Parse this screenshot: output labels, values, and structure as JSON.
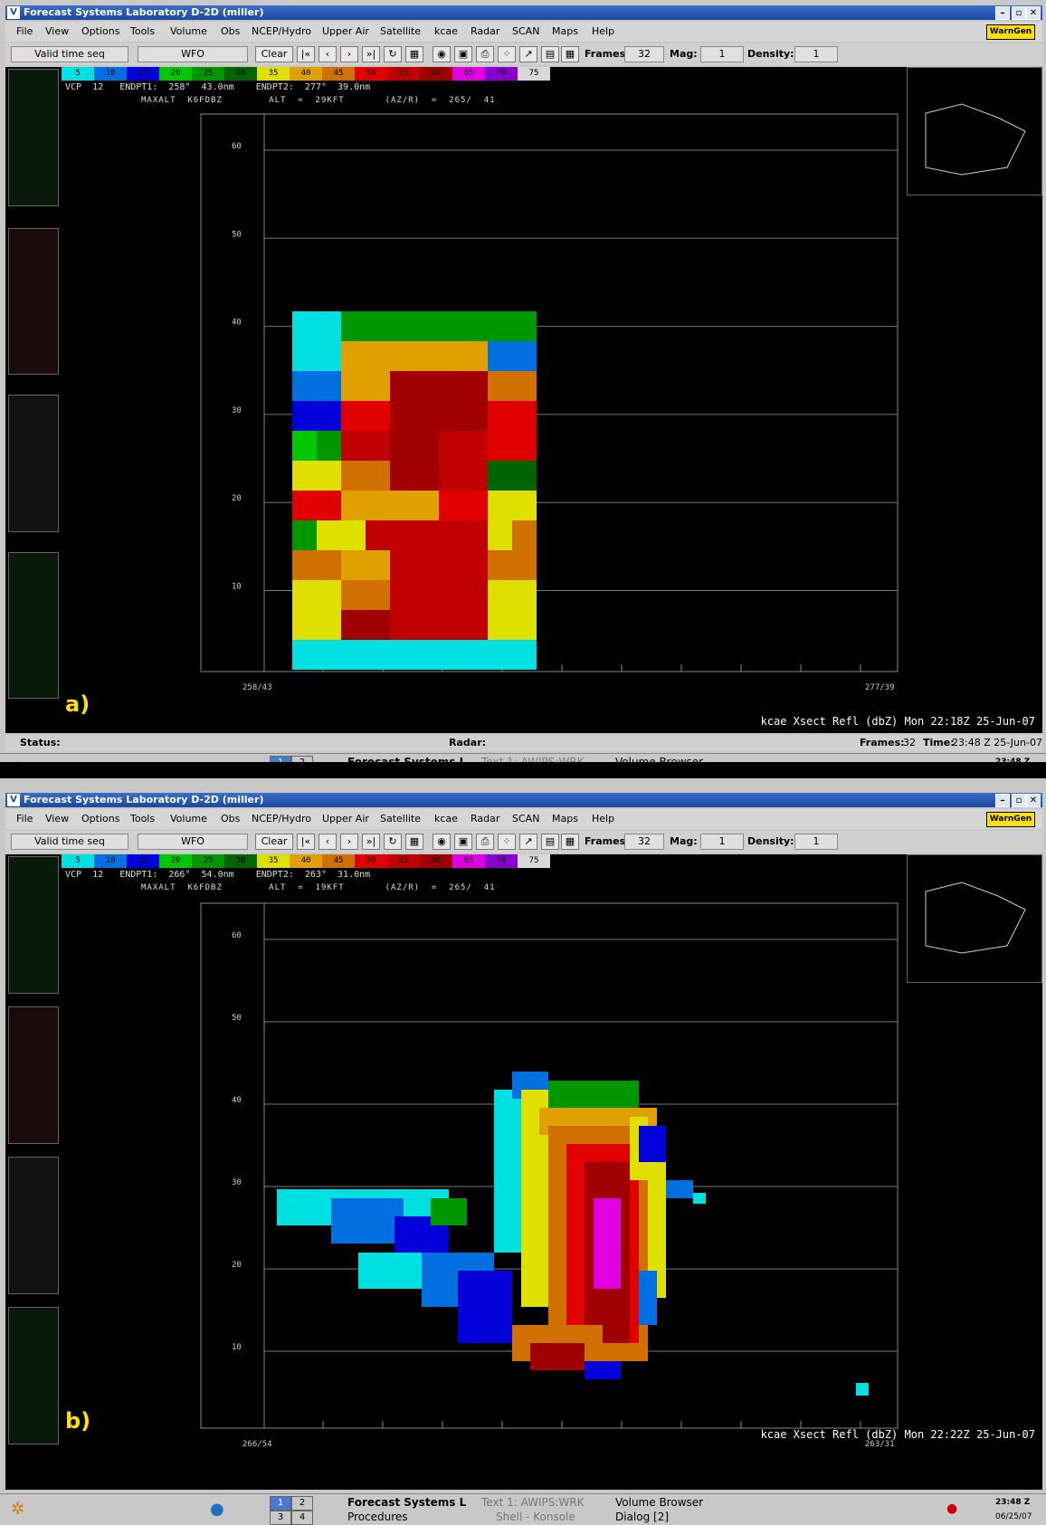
{
  "window": {
    "title": "Forecast Systems Laboratory D-2D (miller)",
    "buttons": [
      "–",
      "▫",
      "✕"
    ]
  },
  "menu": [
    "File",
    "View",
    "Options",
    "Tools",
    "Volume",
    "Obs",
    "NCEP/Hydro",
    "Upper Air",
    "Satellite",
    "kcae",
    "Radar",
    "SCAN",
    "Maps",
    "Help"
  ],
  "warngen_label": "WarnGen",
  "toolbar": {
    "time_mode": "Valid time seq",
    "scale": "WFO",
    "clear": "Clear",
    "frames_label": "Frames:",
    "frames_value": "32",
    "mag_label": "Mag:",
    "mag_value": "1",
    "density_label": "Density:",
    "density_value": "1"
  },
  "colorbar": {
    "labels": [
      "5",
      "10",
      "15",
      "20",
      "25",
      "30",
      "35",
      "40",
      "45",
      "50",
      "55",
      "60",
      "65",
      "70",
      "75"
    ],
    "colors": [
      "#00e0e0",
      "#0070e0",
      "#0000d8",
      "#00c800",
      "#009600",
      "#006400",
      "#e0e000",
      "#e0a000",
      "#d07000",
      "#e00000",
      "#c00000",
      "#a00000",
      "#e000e0",
      "#8800cc",
      "#d8d8d8"
    ]
  },
  "panels": [
    {
      "info": "VCP  12   ENDPT1:  258°  43.0nm    ENDPT2:  277°  39.0nm",
      "alt": "MAXALT  K6FDBZ        ALT  =  29KFT       (AZ/R)  =  265/  41",
      "y_ticks": [
        "60",
        "50",
        "40",
        "30",
        "20",
        "10"
      ],
      "x_start": "258/43",
      "x_end": "277/39",
      "label": "a)",
      "footer": "kcae Xsect Refl (dbZ)  Mon 22:18Z 25-Jun-07"
    },
    {
      "info": "VCP  12   ENDPT1:  266°  54.0nm    ENDPT2:  263°  31.0nm",
      "alt": "MAXALT  K6FDBZ        ALT  =  19KFT       (AZ/R)  =  265/  41",
      "y_ticks": [
        "60",
        "50",
        "40",
        "30",
        "20",
        "10"
      ],
      "x_start": "266/54",
      "x_end": "263/31",
      "label": "b)",
      "footer": "kcae Xsect Refl (dbZ)  Mon 22:22Z 25-Jun-07"
    }
  ],
  "status": {
    "status_label": "Status:",
    "radar_label": "Radar:",
    "frames_label": "Frames:",
    "frames_value": "32",
    "time_label": "Time:",
    "time_value": "23:48 Z 25-Jun-07"
  },
  "taskbar": {
    "pages": [
      "1",
      "2",
      "3",
      "4"
    ],
    "items": [
      "Forecast Systems L",
      "Text 1: AWIPS:WRK",
      "Volume Browser",
      "Procedures",
      "Shell - Konsole",
      "Dialog [2]"
    ],
    "clock": "23:48 Z",
    "date": "06/25/07"
  },
  "grids": [
    [
      "...........CCDDDDDDDD........",
      "...........bbFFGGGGII........",
      "...........ccFFLLLLHH........",
      "...........ddEELLLLEE........",
      "...........efJJLLJJkk........",
      "...........hhHHLLJJgg........",
      "...........kkFFFFkkhh........",
      "...........fhhJJJJJhj........",
      "...........jjFFJJJJjj........",
      "...........hhHHJJJJhh........",
      "...........hhLLJJJJhh........",
      "...........bbbbbbbbbb........"
    ],
    []
  ]
}
